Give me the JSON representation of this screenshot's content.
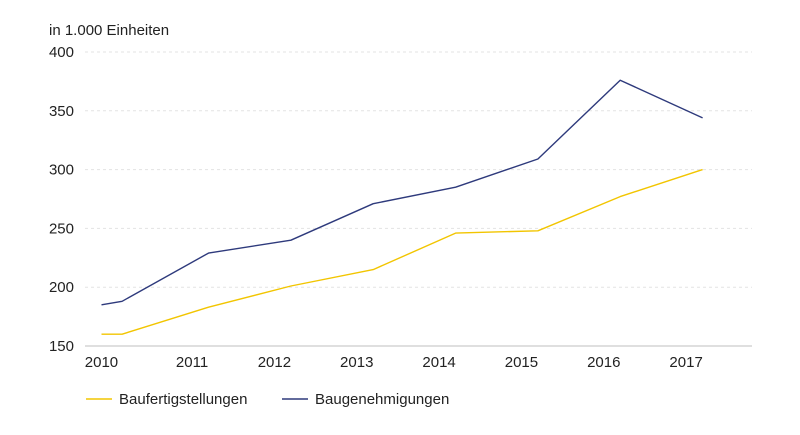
{
  "chart_data": {
    "type": "line",
    "title": "",
    "unit_label": "in 1.000 Einheiten",
    "xlabel": "",
    "ylabel": "",
    "x": [
      2010,
      2010.25,
      2011.3,
      2012.3,
      2013.3,
      2014.3,
      2015.3,
      2016.3,
      2017.3
    ],
    "x_ticks": [
      "2010",
      "2011",
      "2012",
      "2013",
      "2014",
      "2015",
      "2016",
      "2017"
    ],
    "x_tick_values": [
      2010,
      2011.1,
      2012.1,
      2013.1,
      2014.1,
      2015.1,
      2016.1,
      2017.1
    ],
    "xlim": [
      2009.8,
      2017.9
    ],
    "y_ticks": [
      150,
      200,
      250,
      300,
      350,
      400
    ],
    "ylim": [
      150,
      400
    ],
    "grid": true,
    "legend_position": "bottom-left",
    "series": [
      {
        "name": "Baufertigstellungen",
        "color": "#f2c500",
        "values": [
          160,
          160,
          183,
          201,
          215,
          246,
          248,
          277,
          300
        ]
      },
      {
        "name": "Baugenehmigungen",
        "color": "#2e3a7c",
        "values": [
          185,
          188,
          229,
          240,
          271,
          285,
          309,
          376,
          344
        ]
      }
    ]
  }
}
